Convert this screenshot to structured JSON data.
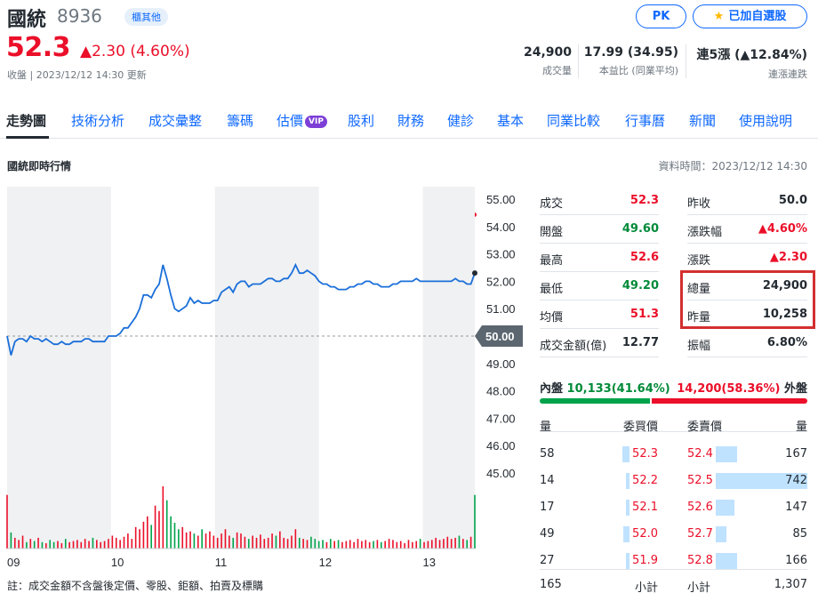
{
  "header": {
    "name": "國統",
    "code": "8936",
    "market_badge": "櫃其他",
    "pk_label": "PK",
    "watchlist_label": "已加自選股",
    "price": "52.3",
    "change": "▲2.30 (4.60%)",
    "close_info": "收盤 | 2023/12/12 14:30 更新",
    "stats": [
      {
        "value": "24,900",
        "label": "成交量"
      },
      {
        "value": "17.99 (34.95)",
        "label": "本益比 (同業平均)"
      },
      {
        "value": "連5漲 (▲12.84%)",
        "label": "連漲連跌"
      }
    ]
  },
  "tabs": [
    {
      "label": "走勢圖",
      "active": true
    },
    {
      "label": "技術分析"
    },
    {
      "label": "成交彙整"
    },
    {
      "label": "籌碼"
    },
    {
      "label": "估價",
      "badge": "VIP"
    },
    {
      "label": "股利"
    },
    {
      "label": "財務"
    },
    {
      "label": "健診",
      "dot": true
    },
    {
      "label": "基本"
    },
    {
      "label": "同業比較"
    },
    {
      "label": "行事曆"
    },
    {
      "label": "新聞"
    },
    {
      "label": "使用說明"
    }
  ],
  "section": {
    "title": "國統即時行情",
    "data_time": "資料時間：2023/12/12 14:30"
  },
  "quote_left": [
    {
      "label": "成交",
      "value": "52.3",
      "color": "red"
    },
    {
      "label": "開盤",
      "value": "49.60",
      "color": "green"
    },
    {
      "label": "最高",
      "value": "52.6",
      "color": "red"
    },
    {
      "label": "最低",
      "value": "49.20",
      "color": "green"
    },
    {
      "label": "均價",
      "value": "51.3",
      "color": "red"
    },
    {
      "label": "成交金額(億)",
      "value": "12.77",
      "color": "black"
    }
  ],
  "quote_right": [
    {
      "label": "昨收",
      "value": "50.0",
      "color": "black"
    },
    {
      "label": "漲跌幅",
      "value": "▲4.60%",
      "color": "red"
    },
    {
      "label": "漲跌",
      "value": "▲2.30",
      "color": "red"
    },
    {
      "label": "總量",
      "value": "24,900",
      "color": "black"
    },
    {
      "label": "昨量",
      "value": "10,258",
      "color": "black"
    },
    {
      "label": "振幅",
      "value": "6.80%",
      "color": "black"
    }
  ],
  "inner_outer": {
    "inner_label": "內盤",
    "inner_value": "10,133(41.64%)",
    "inner_fraction": 0.4164,
    "outer_value": "14,200(58.36%)",
    "outer_label": "外盤"
  },
  "order_book": {
    "headers": {
      "bid_vol": "量",
      "bid_price": "委買價",
      "ask_price": "委賣價",
      "ask_vol": "量"
    },
    "rows": [
      {
        "bid_vol": "58",
        "bid_price": "52.3",
        "bid_frac": 0.08,
        "ask_price": "52.4",
        "ask_vol": "167",
        "ask_frac": 0.23
      },
      {
        "bid_vol": "14",
        "bid_price": "52.2",
        "bid_frac": 0.02,
        "ask_price": "52.5",
        "ask_vol": "742",
        "ask_frac": 1.0
      },
      {
        "bid_vol": "17",
        "bid_price": "52.1",
        "bid_frac": 0.03,
        "ask_price": "52.6",
        "ask_vol": "147",
        "ask_frac": 0.2
      },
      {
        "bid_vol": "49",
        "bid_price": "52.0",
        "bid_frac": 0.07,
        "ask_price": "52.7",
        "ask_vol": "85",
        "ask_frac": 0.12
      },
      {
        "bid_vol": "27",
        "bid_price": "51.9",
        "bid_frac": 0.04,
        "ask_price": "52.8",
        "ask_vol": "166",
        "ask_frac": 0.23
      }
    ],
    "bid_total": "165",
    "subtotal_label": "小計",
    "ask_total": "1,307"
  },
  "note": "註：成交金額不含盤後定價、零股、鉅額、拍賣及標購",
  "colors": {
    "up": "#eb0f29",
    "down": "#008a39",
    "link": "#0f69ff",
    "line": "#1a6fd9"
  },
  "chart_data": {
    "type": "line",
    "x_ticks": [
      "09",
      "10",
      "11",
      "12",
      "13"
    ],
    "y_ticks": [
      "55.00",
      "54.00",
      "53.00",
      "52.00",
      "51.00",
      "50.00",
      "49.00",
      "48.00",
      "47.00",
      "46.00",
      "45.00"
    ],
    "ylim": [
      45,
      55
    ],
    "reference_price": "50.00",
    "series": [
      {
        "values": [
          50.0,
          49.3,
          49.8,
          49.9,
          49.9,
          49.8,
          50.0,
          49.9,
          49.9,
          49.8,
          49.9,
          49.8,
          49.7,
          49.7,
          49.8,
          49.7,
          49.7,
          49.8,
          49.8,
          49.8,
          49.9,
          49.9,
          49.8,
          49.8,
          49.8,
          49.8,
          50.0,
          50.0,
          50.0,
          50.1,
          50.3,
          50.3,
          50.5,
          50.7,
          51.0,
          51.5,
          51.5,
          51.4,
          51.7,
          51.9,
          52.6,
          52.1,
          51.5,
          51.0,
          50.9,
          51.0,
          51.1,
          51.4,
          51.2,
          51.3,
          51.2,
          51.2,
          51.2,
          51.3,
          51.3,
          51.6,
          51.7,
          51.8,
          51.6,
          51.9,
          52.0,
          52.0,
          51.8,
          51.9,
          51.9,
          51.9,
          52.0,
          52.1,
          52.1,
          52.0,
          52.0,
          52.1,
          52.1,
          52.3,
          52.6,
          52.3,
          52.3,
          52.4,
          52.3,
          52.2,
          52.0,
          51.9,
          51.9,
          51.8,
          51.8,
          51.7,
          51.7,
          51.7,
          51.8,
          51.8,
          51.9,
          51.9,
          52.0,
          52.0,
          51.9,
          51.9,
          51.8,
          51.8,
          51.8,
          51.9,
          51.9,
          52.0,
          52.0,
          52.0,
          52.0,
          52.1,
          52.0,
          52.0,
          52.0,
          52.0,
          52.0,
          52.0,
          52.0,
          52.0,
          52.0,
          52.1,
          52.0,
          52.0,
          51.9,
          51.9,
          52.3
        ]
      }
    ],
    "volume": [
      50,
      15,
      10,
      8,
      12,
      6,
      9,
      7,
      10,
      6,
      5,
      8,
      6,
      7,
      5,
      9,
      6,
      7,
      8,
      6,
      9,
      7,
      10,
      8,
      6,
      7,
      9,
      12,
      10,
      8,
      11,
      14,
      9,
      20,
      18,
      25,
      30,
      22,
      40,
      35,
      58,
      45,
      30,
      24,
      18,
      20,
      15,
      16,
      14,
      12,
      18,
      14,
      16,
      12,
      10,
      14,
      18,
      12,
      10,
      15,
      14,
      11,
      9,
      12,
      10,
      13,
      9,
      10,
      14,
      12,
      16,
      10,
      9,
      12,
      18,
      10,
      9,
      8,
      11,
      9,
      7,
      8,
      6,
      9,
      7,
      8,
      6,
      7,
      8,
      6,
      9,
      7,
      8,
      6,
      7,
      8,
      6,
      7,
      9,
      8,
      6,
      7,
      5,
      8,
      6,
      7,
      9,
      6,
      7,
      8,
      10,
      8,
      9,
      11,
      9,
      10,
      12,
      9,
      8,
      11,
      50
    ]
  }
}
